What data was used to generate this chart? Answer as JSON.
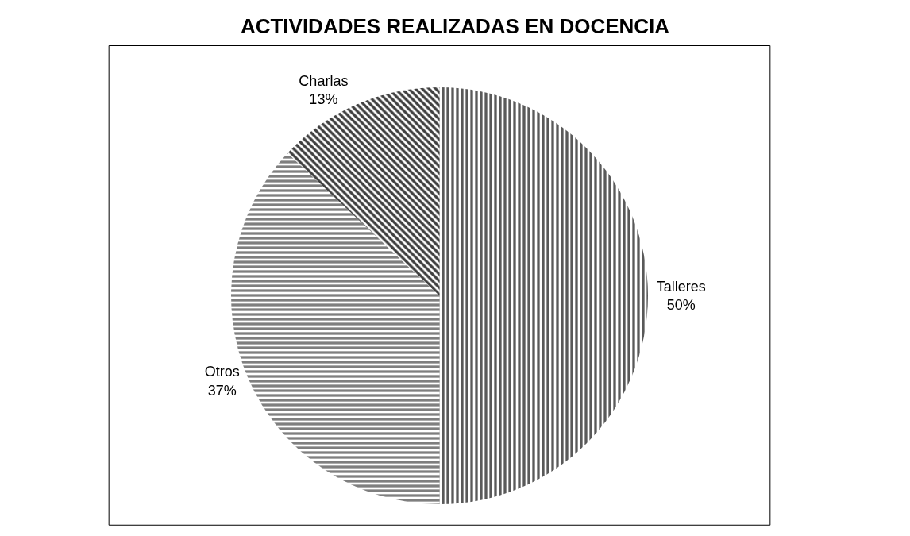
{
  "chart_data": {
    "type": "pie",
    "title": "ACTIVIDADES REALIZADAS EN DOCENCIA",
    "categories": [
      "Talleres",
      "Otros",
      "Charlas"
    ],
    "values": [
      50,
      37,
      13
    ],
    "value_labels": [
      "50%",
      "37%",
      "13%"
    ],
    "colors": [
      "#595959",
      "#7f7f7f",
      "#404040"
    ],
    "legend": false
  }
}
